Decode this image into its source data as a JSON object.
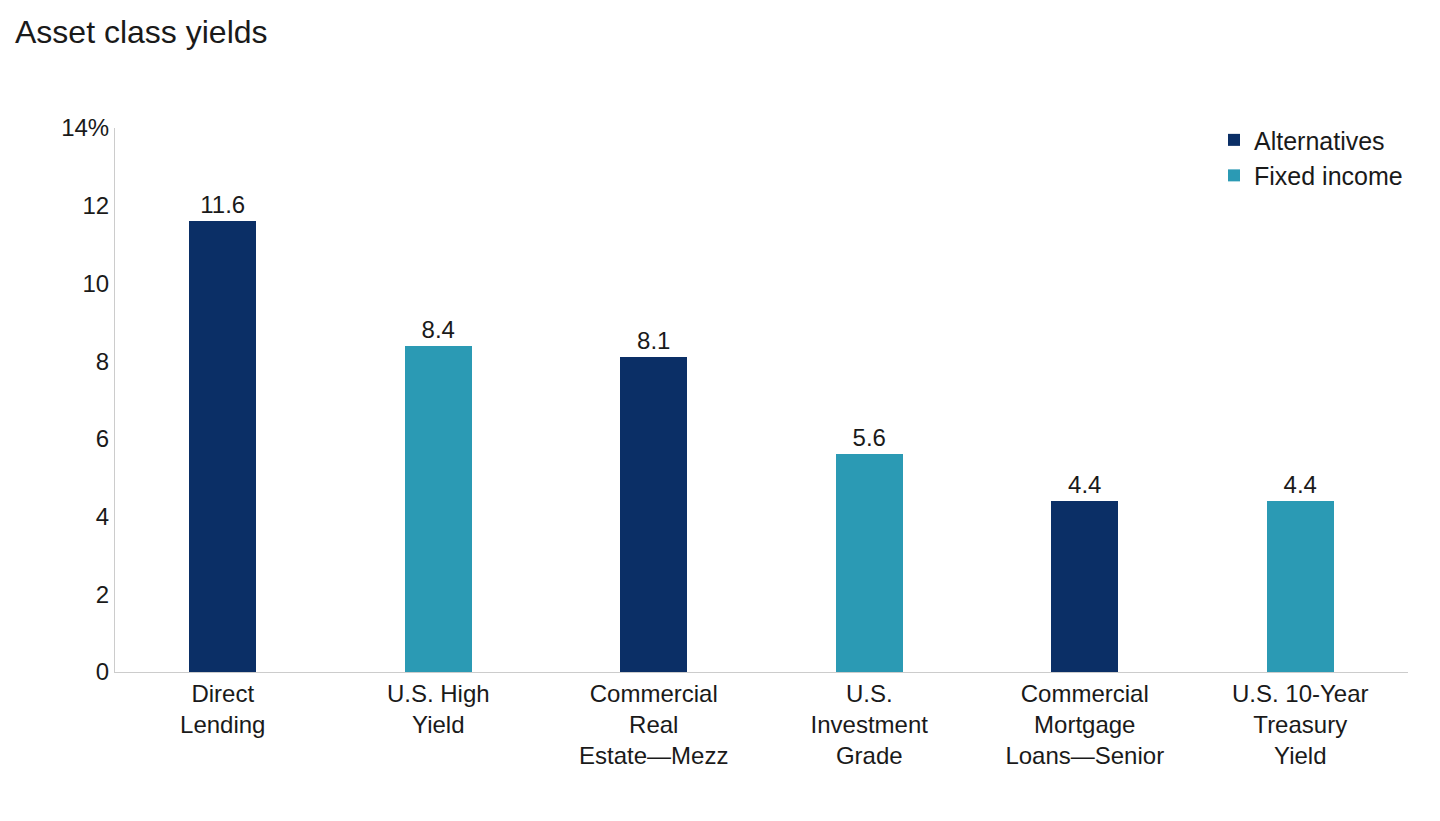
{
  "chart_data": {
    "type": "bar",
    "title": "Asset class yields",
    "categories": [
      "Direct\nLending",
      "U.S. High\nYield",
      "Commercial\nReal\nEstate—Mezz",
      "U.S.\nInvestment\nGrade",
      "Commercial\nMortgage\nLoans—Senior",
      "U.S. 10-Year\nTreasury\nYield"
    ],
    "series": [
      {
        "name": "Alternatives",
        "color": "#0b2f66",
        "values": [
          11.6,
          null,
          8.1,
          null,
          4.4,
          null
        ]
      },
      {
        "name": "Fixed income",
        "color": "#2b9ab4",
        "values": [
          null,
          8.4,
          null,
          5.6,
          null,
          4.4
        ]
      }
    ],
    "ylim": [
      0,
      14
    ],
    "yticks": [
      0,
      2,
      4,
      6,
      8,
      10,
      12,
      {
        "value": 14,
        "label": "14%"
      }
    ],
    "grid": false,
    "legend": "upper right",
    "data_labels": true
  }
}
